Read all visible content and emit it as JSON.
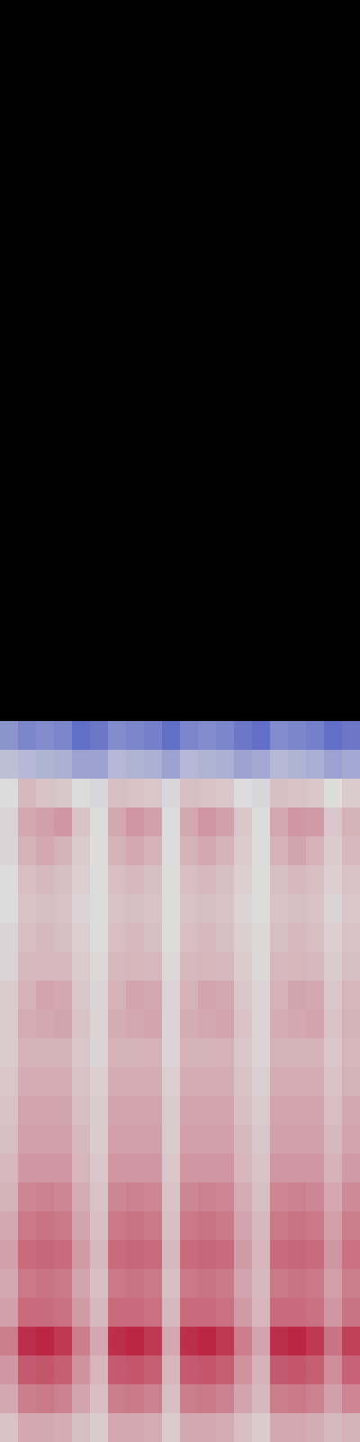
{
  "chart_data": {
    "type": "heatmap",
    "tick_labels": false,
    "zlim": [
      0,
      1
    ],
    "cells": [
      [
        0.25,
        0.2,
        0.22,
        0.2,
        0.12,
        0.15,
        0.22,
        0.2,
        0.18,
        0.12,
        0.2,
        0.22,
        0.2,
        0.15,
        0.12,
        0.22,
        0.2,
        0.18,
        0.12,
        0.15
      ],
      [
        0.4,
        0.38,
        0.36,
        0.35,
        0.3,
        0.3,
        0.38,
        0.36,
        0.35,
        0.3,
        0.38,
        0.36,
        0.35,
        0.3,
        0.32,
        0.38,
        0.36,
        0.34,
        0.3,
        0.32
      ],
      [
        0.5,
        0.58,
        0.56,
        0.55,
        0.5,
        0.48,
        0.57,
        0.56,
        0.55,
        0.48,
        0.57,
        0.56,
        0.55,
        0.5,
        0.48,
        0.57,
        0.56,
        0.55,
        0.5,
        0.54
      ],
      [
        0.52,
        0.62,
        0.64,
        0.66,
        0.56,
        0.5,
        0.62,
        0.66,
        0.64,
        0.5,
        0.62,
        0.66,
        0.64,
        0.55,
        0.5,
        0.62,
        0.66,
        0.65,
        0.55,
        0.6
      ],
      [
        0.52,
        0.6,
        0.62,
        0.6,
        0.54,
        0.5,
        0.6,
        0.62,
        0.6,
        0.5,
        0.6,
        0.62,
        0.6,
        0.54,
        0.5,
        0.6,
        0.63,
        0.6,
        0.54,
        0.58
      ],
      [
        0.5,
        0.57,
        0.58,
        0.57,
        0.53,
        0.5,
        0.57,
        0.58,
        0.57,
        0.5,
        0.57,
        0.58,
        0.57,
        0.53,
        0.5,
        0.57,
        0.58,
        0.57,
        0.53,
        0.56
      ],
      [
        0.5,
        0.56,
        0.57,
        0.56,
        0.52,
        0.5,
        0.56,
        0.57,
        0.56,
        0.5,
        0.56,
        0.57,
        0.56,
        0.52,
        0.5,
        0.56,
        0.57,
        0.56,
        0.52,
        0.55
      ],
      [
        0.52,
        0.57,
        0.58,
        0.57,
        0.53,
        0.5,
        0.57,
        0.58,
        0.57,
        0.5,
        0.57,
        0.58,
        0.57,
        0.53,
        0.51,
        0.57,
        0.58,
        0.57,
        0.53,
        0.56
      ],
      [
        0.52,
        0.58,
        0.58,
        0.58,
        0.54,
        0.51,
        0.58,
        0.59,
        0.58,
        0.51,
        0.58,
        0.59,
        0.58,
        0.54,
        0.51,
        0.58,
        0.59,
        0.58,
        0.54,
        0.57
      ],
      [
        0.54,
        0.6,
        0.63,
        0.62,
        0.55,
        0.52,
        0.6,
        0.63,
        0.62,
        0.52,
        0.6,
        0.63,
        0.62,
        0.55,
        0.52,
        0.6,
        0.63,
        0.62,
        0.55,
        0.59
      ],
      [
        0.54,
        0.61,
        0.62,
        0.63,
        0.56,
        0.52,
        0.61,
        0.62,
        0.63,
        0.52,
        0.61,
        0.62,
        0.63,
        0.56,
        0.52,
        0.61,
        0.62,
        0.63,
        0.56,
        0.6
      ],
      [
        0.54,
        0.6,
        0.6,
        0.6,
        0.55,
        0.52,
        0.6,
        0.6,
        0.6,
        0.52,
        0.6,
        0.6,
        0.6,
        0.55,
        0.52,
        0.6,
        0.6,
        0.6,
        0.55,
        0.59
      ],
      [
        0.55,
        0.61,
        0.61,
        0.61,
        0.56,
        0.53,
        0.61,
        0.61,
        0.61,
        0.53,
        0.61,
        0.61,
        0.61,
        0.56,
        0.53,
        0.61,
        0.61,
        0.61,
        0.56,
        0.6
      ],
      [
        0.56,
        0.63,
        0.63,
        0.63,
        0.57,
        0.54,
        0.63,
        0.63,
        0.63,
        0.54,
        0.63,
        0.63,
        0.63,
        0.57,
        0.54,
        0.63,
        0.63,
        0.63,
        0.57,
        0.62
      ],
      [
        0.57,
        0.64,
        0.64,
        0.64,
        0.58,
        0.54,
        0.64,
        0.64,
        0.64,
        0.54,
        0.64,
        0.64,
        0.64,
        0.58,
        0.55,
        0.64,
        0.64,
        0.64,
        0.58,
        0.63
      ],
      [
        0.58,
        0.66,
        0.66,
        0.66,
        0.59,
        0.55,
        0.66,
        0.66,
        0.66,
        0.55,
        0.66,
        0.66,
        0.66,
        0.59,
        0.56,
        0.66,
        0.66,
        0.66,
        0.6,
        0.65
      ],
      [
        0.6,
        0.7,
        0.71,
        0.7,
        0.61,
        0.56,
        0.7,
        0.71,
        0.7,
        0.56,
        0.7,
        0.71,
        0.7,
        0.61,
        0.57,
        0.7,
        0.71,
        0.7,
        0.62,
        0.69
      ],
      [
        0.62,
        0.73,
        0.74,
        0.73,
        0.63,
        0.57,
        0.73,
        0.74,
        0.73,
        0.57,
        0.73,
        0.74,
        0.73,
        0.63,
        0.58,
        0.73,
        0.74,
        0.73,
        0.64,
        0.72
      ],
      [
        0.64,
        0.76,
        0.77,
        0.76,
        0.65,
        0.58,
        0.76,
        0.77,
        0.76,
        0.58,
        0.76,
        0.77,
        0.76,
        0.65,
        0.59,
        0.76,
        0.77,
        0.76,
        0.66,
        0.75
      ],
      [
        0.62,
        0.73,
        0.74,
        0.73,
        0.63,
        0.57,
        0.73,
        0.74,
        0.73,
        0.57,
        0.73,
        0.74,
        0.73,
        0.63,
        0.58,
        0.73,
        0.74,
        0.73,
        0.64,
        0.72
      ],
      [
        0.64,
        0.76,
        0.76,
        0.75,
        0.65,
        0.58,
        0.76,
        0.76,
        0.75,
        0.58,
        0.76,
        0.76,
        0.75,
        0.65,
        0.59,
        0.76,
        0.76,
        0.75,
        0.66,
        0.74
      ],
      [
        0.72,
        0.9,
        0.92,
        0.88,
        0.72,
        0.62,
        0.9,
        0.92,
        0.88,
        0.62,
        0.9,
        0.92,
        0.88,
        0.72,
        0.63,
        0.9,
        0.92,
        0.88,
        0.74,
        0.86
      ],
      [
        0.66,
        0.8,
        0.81,
        0.79,
        0.67,
        0.59,
        0.8,
        0.81,
        0.79,
        0.59,
        0.8,
        0.81,
        0.79,
        0.67,
        0.6,
        0.8,
        0.81,
        0.79,
        0.68,
        0.78
      ],
      [
        0.62,
        0.72,
        0.73,
        0.71,
        0.63,
        0.57,
        0.72,
        0.73,
        0.71,
        0.57,
        0.72,
        0.73,
        0.71,
        0.63,
        0.58,
        0.72,
        0.73,
        0.71,
        0.64,
        0.7
      ],
      [
        0.56,
        0.62,
        0.62,
        0.61,
        0.57,
        0.54,
        0.62,
        0.62,
        0.61,
        0.54,
        0.62,
        0.62,
        0.61,
        0.57,
        0.54,
        0.62,
        0.62,
        0.61,
        0.58,
        0.6
      ]
    ]
  }
}
